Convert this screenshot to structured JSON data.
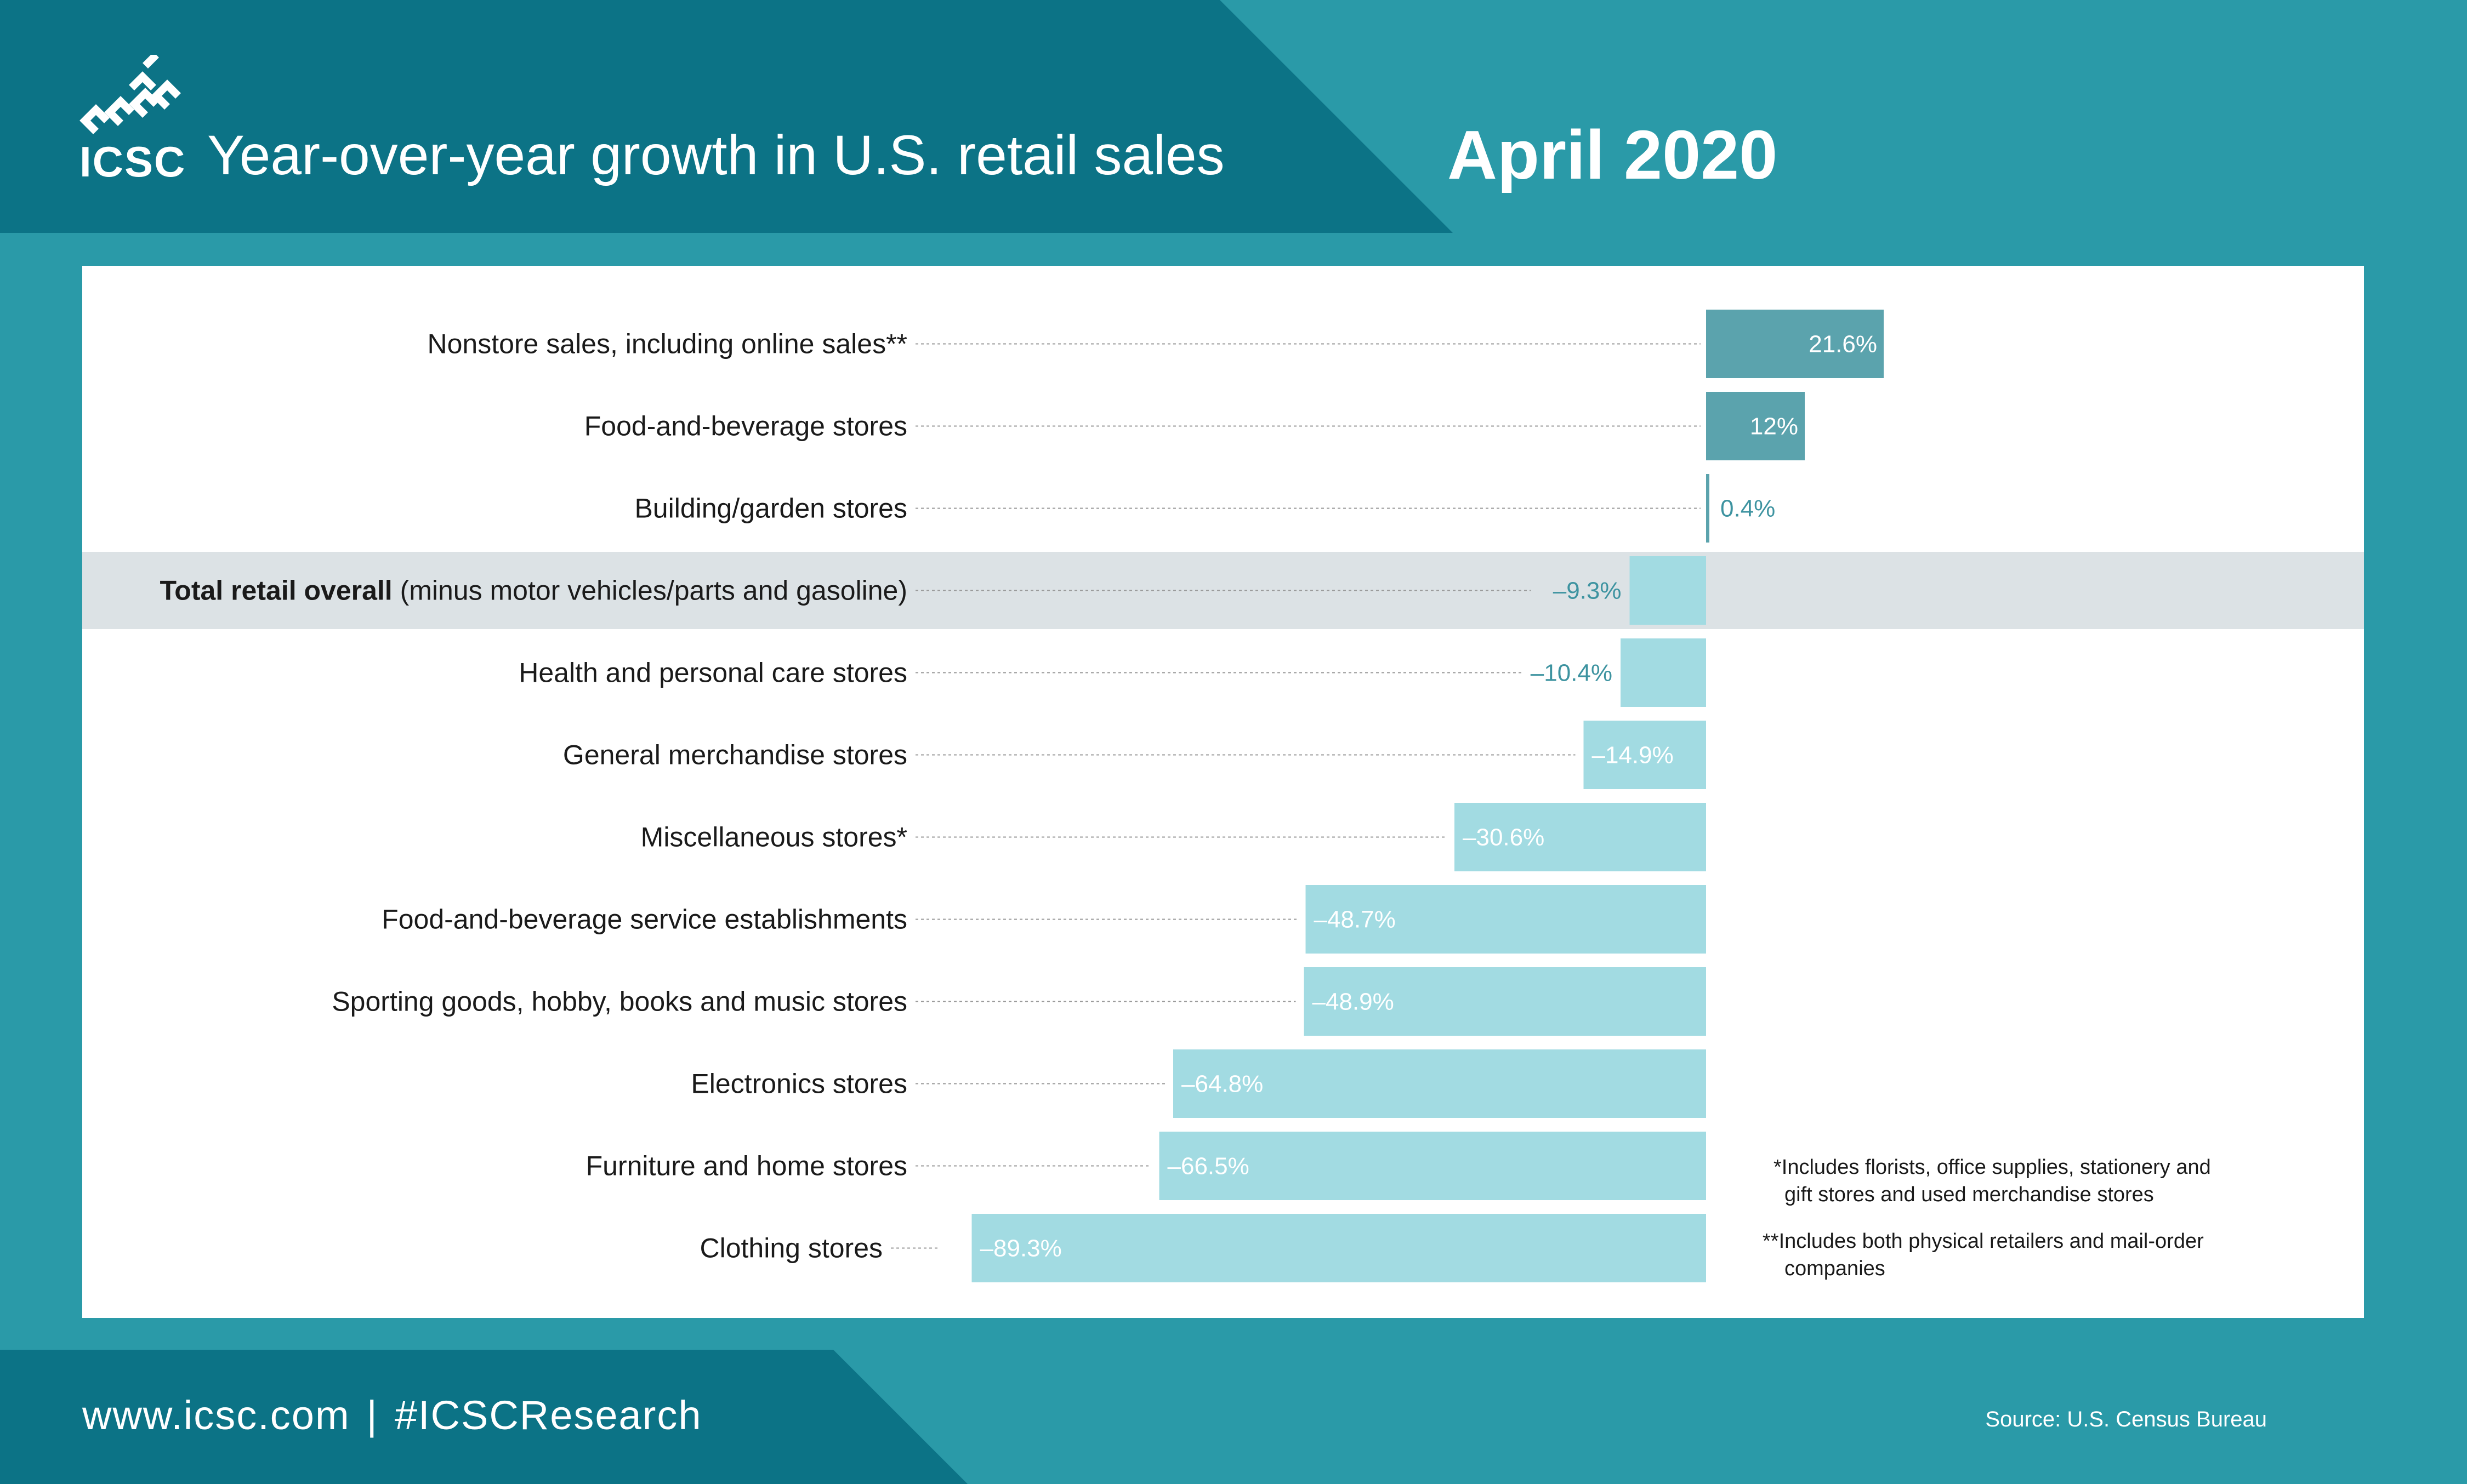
{
  "header": {
    "logo_text": "ICSC",
    "title": "Year-over-year growth in U.S. retail sales",
    "date": "April 2020"
  },
  "notes": {
    "note1_line1": "*Includes florists, office supplies, stationery and",
    "note1_line2": "gift stores and used merchandise stores",
    "note2_line1": "**Includes both physical retailers and mail-order",
    "note2_line2": "companies"
  },
  "footer": {
    "website": "www.icsc.com",
    "separator": "|",
    "hashtag": "#ICSCResearch",
    "source": "Source: U.S. Census Bureau"
  },
  "colors": {
    "positive_bar": "#5ba3ad",
    "negative_bar": "#a2dbe2",
    "highlight_row": "#dce2e5",
    "banner": "#0c7386",
    "background": "#2a9aa8"
  },
  "chart_data": {
    "type": "bar",
    "orientation": "horizontal",
    "highlight_category": "Total retail overall",
    "categories": [
      {
        "label": "Nonstore sales, including online sales**",
        "sub": "",
        "value": 21.6,
        "value_label": "21.6%"
      },
      {
        "label": "Food-and-beverage stores",
        "sub": "",
        "value": 12,
        "value_label": "12%"
      },
      {
        "label": "Building/garden stores",
        "sub": "",
        "value": 0.4,
        "value_label": "0.4%"
      },
      {
        "label": "Total retail overall",
        "sub": " (minus motor vehicles/parts and gasoline)",
        "value": -9.3,
        "value_label": "–9.3%"
      },
      {
        "label": "Health and personal care stores",
        "sub": "",
        "value": -10.4,
        "value_label": "–10.4%"
      },
      {
        "label": "General merchandise stores",
        "sub": "",
        "value": -14.9,
        "value_label": "–14.9%"
      },
      {
        "label": "Miscellaneous stores*",
        "sub": "",
        "value": -30.6,
        "value_label": "–30.6%"
      },
      {
        "label": "Food-and-beverage service establishments",
        "sub": "",
        "value": -48.7,
        "value_label": "–48.7%"
      },
      {
        "label": "Sporting goods, hobby, books and music stores",
        "sub": "",
        "value": -48.9,
        "value_label": "–48.9%"
      },
      {
        "label": "Electronics stores",
        "sub": "",
        "value": -64.8,
        "value_label": "–64.8%"
      },
      {
        "label": "Furniture and home stores",
        "sub": "",
        "value": -66.5,
        "value_label": "–66.5%"
      },
      {
        "label": "Clothing stores",
        "sub": "",
        "value": -89.3,
        "value_label": "–89.3%"
      }
    ]
  }
}
